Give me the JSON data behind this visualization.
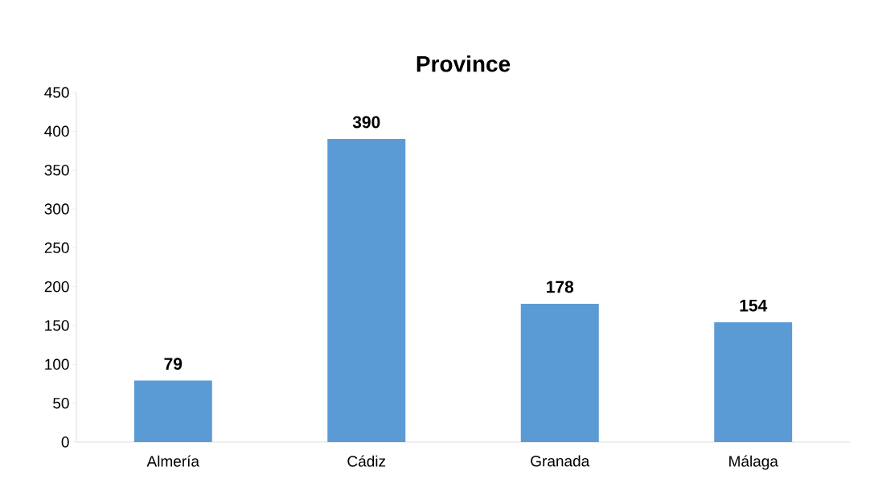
{
  "chart_data": {
    "type": "bar",
    "title": "Province",
    "categories": [
      "Almería",
      "Cádiz",
      "Granada",
      "Málaga"
    ],
    "values": [
      79,
      390,
      178,
      154
    ],
    "color": "#5b9bd5",
    "ylim": [
      0,
      450
    ],
    "yticks": [
      0,
      50,
      100,
      150,
      200,
      250,
      300,
      350,
      400,
      450
    ],
    "data_labels": true,
    "grid": false
  }
}
